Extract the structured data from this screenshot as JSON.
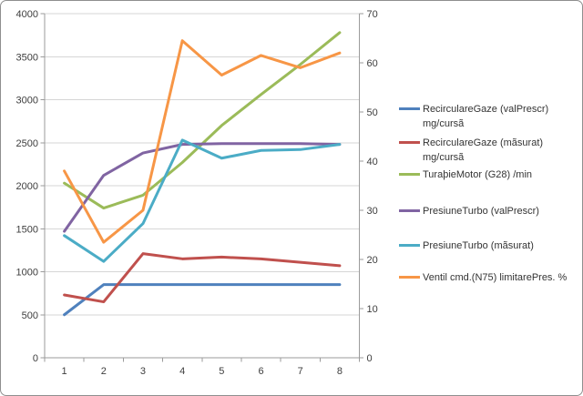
{
  "chart_data": {
    "type": "line",
    "title": "",
    "xlabel": "",
    "ylabel": "",
    "grid": true,
    "legend_position": "right",
    "categories": [
      "1",
      "2",
      "3",
      "4",
      "5",
      "6",
      "7",
      "8"
    ],
    "left_axis": {
      "min": 0,
      "max": 4000,
      "step": 500,
      "tick_labels": [
        "0",
        "500",
        "1000",
        "1500",
        "2000",
        "2500",
        "3000",
        "3500",
        "4000"
      ]
    },
    "right_axis": {
      "min": 0,
      "max": 70,
      "step": 10,
      "tick_labels": [
        "0",
        "10",
        "20",
        "30",
        "40",
        "50",
        "60",
        "70"
      ]
    },
    "series": [
      {
        "name": "RecirculareGaze (valPrescr) mg/cursã",
        "axis": "left",
        "color": "#4F81BD",
        "values": [
          500,
          850,
          850,
          850,
          850,
          850,
          850,
          850
        ]
      },
      {
        "name": "RecirculareGaze (mãsurat) mg/cursã",
        "axis": "left",
        "color": "#C0504D",
        "values": [
          730,
          650,
          1210,
          1150,
          1170,
          1150,
          1110,
          1070
        ]
      },
      {
        "name": "TuraþieMotor (G28)  /min",
        "axis": "left",
        "color": "#9BBB59",
        "values": [
          2030,
          1740,
          1890,
          2270,
          2700,
          3060,
          3410,
          3780
        ]
      },
      {
        "name": "PresiuneTurbo (valPrescr)",
        "axis": "left",
        "color": "#8064A2",
        "values": [
          1470,
          2120,
          2380,
          2480,
          2490,
          2490,
          2490,
          2480
        ]
      },
      {
        "name": "PresiuneTurbo (mãsurat)",
        "axis": "left",
        "color": "#4BACC6",
        "values": [
          1420,
          1120,
          1560,
          2530,
          2320,
          2410,
          2420,
          2480
        ]
      },
      {
        "name": "Ventil cmd.(N75) limitarePres.  %",
        "axis": "right",
        "color": "#F79646",
        "values": [
          38,
          23.5,
          30,
          64.5,
          57.5,
          61.5,
          59,
          62
        ]
      }
    ]
  },
  "legend": {
    "items": [
      {
        "line1": "RecirculareGaze (valPrescr)",
        "line2": "mg/cursã"
      },
      {
        "line1": "RecirculareGaze (mãsurat)",
        "line2": "mg/cursã"
      },
      {
        "line1": "TuraþieMotor (G28)  /min",
        "line2": ""
      },
      {
        "line1": "PresiuneTurbo (valPrescr)",
        "line2": ""
      },
      {
        "line1": "PresiuneTurbo (mãsurat)",
        "line2": ""
      },
      {
        "line1": "Ventil cmd.(N75) limitarePres.  %",
        "line2": ""
      }
    ]
  },
  "colors": {
    "gridline": "#D6D6D6",
    "axis_line": "#9B9B9B",
    "tick_text": "#3D3D3D",
    "background": "#FFFFFF",
    "border": "#8F8F8F"
  }
}
